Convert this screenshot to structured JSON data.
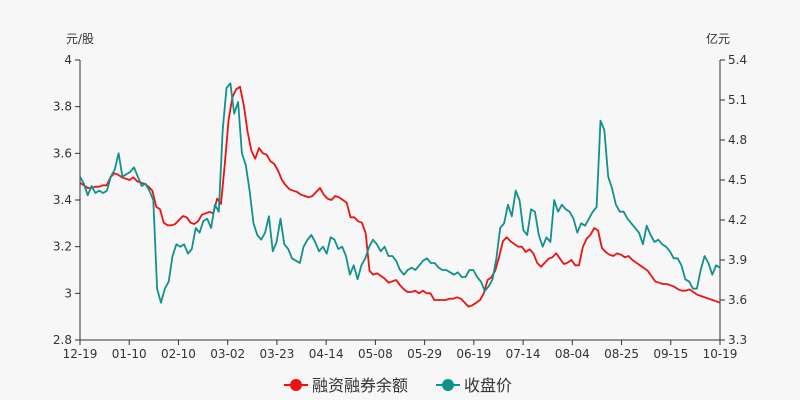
{
  "chart_data": {
    "type": "line",
    "units": {
      "left": "元/股",
      "right": "亿元"
    },
    "x_tick_labels": [
      "12-19",
      "01-10",
      "02-10",
      "03-02",
      "03-23",
      "04-14",
      "05-08",
      "05-29",
      "06-19",
      "07-14",
      "08-04",
      "08-25",
      "09-15",
      "10-19"
    ],
    "left_axis": {
      "min": 2.8,
      "max": 4.0,
      "ticks": [
        "2.8",
        "3",
        "3.2",
        "3.4",
        "3.6",
        "3.8",
        "4"
      ]
    },
    "right_axis": {
      "min": 3.3,
      "max": 5.4,
      "ticks": [
        "3.3",
        "3.6",
        "3.9",
        "4.2",
        "4.5",
        "4.8",
        "5.1",
        "5.4"
      ]
    },
    "grid": false,
    "legend_position": "bottom",
    "colors": {
      "margin_balance": "#ee1111",
      "close_price": "#11918b",
      "axis": "#333333"
    },
    "series": [
      {
        "name": "融资融券余额",
        "axis": "right",
        "color": "#ee1111",
        "values": [
          4.48,
          4.46,
          4.44,
          4.44,
          4.45,
          4.45,
          4.46,
          4.46,
          4.52,
          4.55,
          4.54,
          4.52,
          4.51,
          4.5,
          4.52,
          4.49,
          4.48,
          4.47,
          4.45,
          4.42,
          4.3,
          4.28,
          4.18,
          4.16,
          4.16,
          4.17,
          4.2,
          4.23,
          4.22,
          4.18,
          4.17,
          4.19,
          4.24,
          4.25,
          4.26,
          4.25,
          4.36,
          4.32,
          4.62,
          4.95,
          5.12,
          5.18,
          5.2,
          5.06,
          4.86,
          4.72,
          4.66,
          4.74,
          4.7,
          4.69,
          4.64,
          4.62,
          4.57,
          4.5,
          4.46,
          4.43,
          4.42,
          4.41,
          4.39,
          4.38,
          4.37,
          4.38,
          4.41,
          4.44,
          4.39,
          4.36,
          4.35,
          4.38,
          4.37,
          4.35,
          4.33,
          4.22,
          4.22,
          4.19,
          4.18,
          4.1,
          3.82,
          3.79,
          3.8,
          3.78,
          3.76,
          3.73,
          3.74,
          3.75,
          3.71,
          3.68,
          3.66,
          3.66,
          3.67,
          3.65,
          3.67,
          3.65,
          3.65,
          3.6,
          3.6,
          3.6,
          3.6,
          3.61,
          3.61,
          3.62,
          3.61,
          3.58,
          3.55,
          3.56,
          3.58,
          3.6,
          3.65,
          3.75,
          3.77,
          3.82,
          3.92,
          4.04,
          4.07,
          4.04,
          4.02,
          4.0,
          4.0,
          3.96,
          3.98,
          3.95,
          3.88,
          3.85,
          3.88,
          3.91,
          3.92,
          3.95,
          3.91,
          3.87,
          3.88,
          3.9,
          3.86,
          3.86,
          4.0,
          4.06,
          4.09,
          4.14,
          4.12,
          3.99,
          3.96,
          3.94,
          3.93,
          3.95,
          3.94,
          3.92,
          3.93,
          3.9,
          3.88,
          3.86,
          3.84,
          3.82,
          3.78,
          3.74,
          3.73,
          3.72,
          3.72,
          3.71,
          3.7,
          3.68,
          3.67,
          3.67,
          3.68,
          3.66,
          3.64,
          3.63,
          3.62,
          3.61,
          3.6,
          3.59,
          3.58
        ],
        "points_note": ""
      },
      {
        "name": "收盘价",
        "axis": "left",
        "color": "#11918b",
        "values": [
          3.5,
          3.47,
          3.42,
          3.46,
          3.43,
          3.44,
          3.43,
          3.44,
          3.5,
          3.53,
          3.6,
          3.5,
          3.51,
          3.52,
          3.54,
          3.5,
          3.46,
          3.47,
          3.44,
          3.4,
          3.02,
          2.96,
          3.02,
          3.05,
          3.16,
          3.21,
          3.2,
          3.21,
          3.17,
          3.19,
          3.28,
          3.26,
          3.31,
          3.32,
          3.28,
          3.38,
          3.35,
          3.7,
          3.88,
          3.9,
          3.77,
          3.82,
          3.6,
          3.55,
          3.44,
          3.3,
          3.25,
          3.23,
          3.26,
          3.33,
          3.18,
          3.22,
          3.32,
          3.21,
          3.19,
          3.15,
          3.14,
          3.13,
          3.2,
          3.23,
          3.25,
          3.22,
          3.18,
          3.2,
          3.17,
          3.24,
          3.23,
          3.19,
          3.2,
          3.16,
          3.08,
          3.12,
          3.06,
          3.12,
          3.15,
          3.2,
          3.23,
          3.21,
          3.18,
          3.2,
          3.16,
          3.16,
          3.14,
          3.1,
          3.08,
          3.1,
          3.11,
          3.1,
          3.12,
          3.14,
          3.15,
          3.13,
          3.13,
          3.11,
          3.1,
          3.1,
          3.09,
          3.08,
          3.09,
          3.07,
          3.07,
          3.1,
          3.1,
          3.07,
          3.05,
          3.01,
          3.03,
          3.06,
          3.15,
          3.28,
          3.3,
          3.38,
          3.33,
          3.44,
          3.4,
          3.27,
          3.25,
          3.36,
          3.35,
          3.25,
          3.2,
          3.24,
          3.22,
          3.4,
          3.35,
          3.38,
          3.36,
          3.35,
          3.32,
          3.26,
          3.3,
          3.29,
          3.32,
          3.35,
          3.37,
          3.74,
          3.7,
          3.5,
          3.45,
          3.38,
          3.35,
          3.35,
          3.32,
          3.3,
          3.28,
          3.26,
          3.21,
          3.29,
          3.25,
          3.22,
          3.23,
          3.21,
          3.2,
          3.18,
          3.15,
          3.15,
          3.12,
          3.06,
          3.05,
          3.02,
          3.02,
          3.1,
          3.16,
          3.13,
          3.08,
          3.12,
          3.11
        ]
      }
    ]
  }
}
